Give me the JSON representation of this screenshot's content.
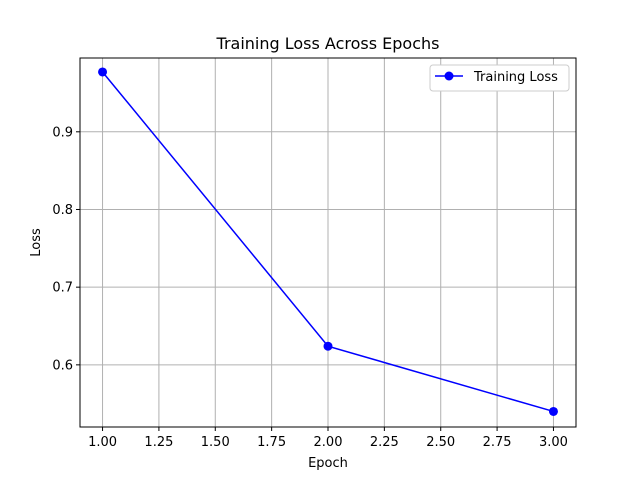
{
  "chart_data": {
    "type": "line",
    "title": "Training Loss Across Epochs",
    "xlabel": "Epoch",
    "ylabel": "Loss",
    "xlim": [
      0.9,
      3.1
    ],
    "ylim": [
      0.52,
      0.995
    ],
    "xticks": [
      1.0,
      1.25,
      1.5,
      1.75,
      2.0,
      2.25,
      2.5,
      2.75,
      3.0
    ],
    "xtick_labels": [
      "1.00",
      "1.25",
      "1.50",
      "1.75",
      "2.00",
      "2.25",
      "2.50",
      "2.75",
      "3.00"
    ],
    "yticks": [
      0.6,
      0.7,
      0.8,
      0.9
    ],
    "ytick_labels": [
      "0.6",
      "0.7",
      "0.8",
      "0.9"
    ],
    "grid": true,
    "legend_position": "top-right",
    "series": [
      {
        "name": "Training Loss",
        "color": "#0000ff",
        "marker": "circle",
        "x": [
          1,
          2,
          3
        ],
        "y": [
          0.977,
          0.624,
          0.54
        ]
      }
    ]
  }
}
